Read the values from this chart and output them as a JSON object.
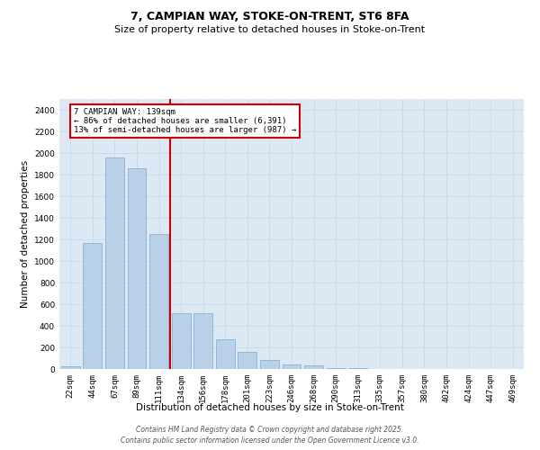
{
  "title_line1": "7, CAMPIAN WAY, STOKE-ON-TRENT, ST6 8FA",
  "title_line2": "Size of property relative to detached houses in Stoke-on-Trent",
  "xlabel": "Distribution of detached houses by size in Stoke-on-Trent",
  "ylabel": "Number of detached properties",
  "categories": [
    "22sqm",
    "44sqm",
    "67sqm",
    "89sqm",
    "111sqm",
    "134sqm",
    "156sqm",
    "178sqm",
    "201sqm",
    "223sqm",
    "246sqm",
    "268sqm",
    "290sqm",
    "313sqm",
    "335sqm",
    "357sqm",
    "380sqm",
    "402sqm",
    "424sqm",
    "447sqm",
    "469sqm"
  ],
  "values": [
    25,
    1165,
    1960,
    1855,
    1250,
    515,
    515,
    275,
    155,
    85,
    45,
    35,
    10,
    5,
    2,
    1,
    1,
    0,
    0,
    0,
    0
  ],
  "bar_color": "#b8d0e8",
  "bar_edge_color": "#7aaac8",
  "vline_color": "#cc0000",
  "annotation_text": "7 CAMPIAN WAY: 139sqm\n← 86% of detached houses are smaller (6,391)\n13% of semi-detached houses are larger (987) →",
  "annotation_box_color": "#cc0000",
  "ylim": [
    0,
    2500
  ],
  "yticks": [
    0,
    200,
    400,
    600,
    800,
    1000,
    1200,
    1400,
    1600,
    1800,
    2000,
    2200,
    2400
  ],
  "grid_color": "#c8d8e8",
  "bg_color": "#dce8f4",
  "footer_line1": "Contains HM Land Registry data © Crown copyright and database right 2025.",
  "footer_line2": "Contains public sector information licensed under the Open Government Licence v3.0.",
  "title_fontsize": 9,
  "subtitle_fontsize": 8,
  "axis_label_fontsize": 7.5,
  "tick_fontsize": 6.5,
  "annotation_fontsize": 6.5,
  "footer_fontsize": 5.5
}
